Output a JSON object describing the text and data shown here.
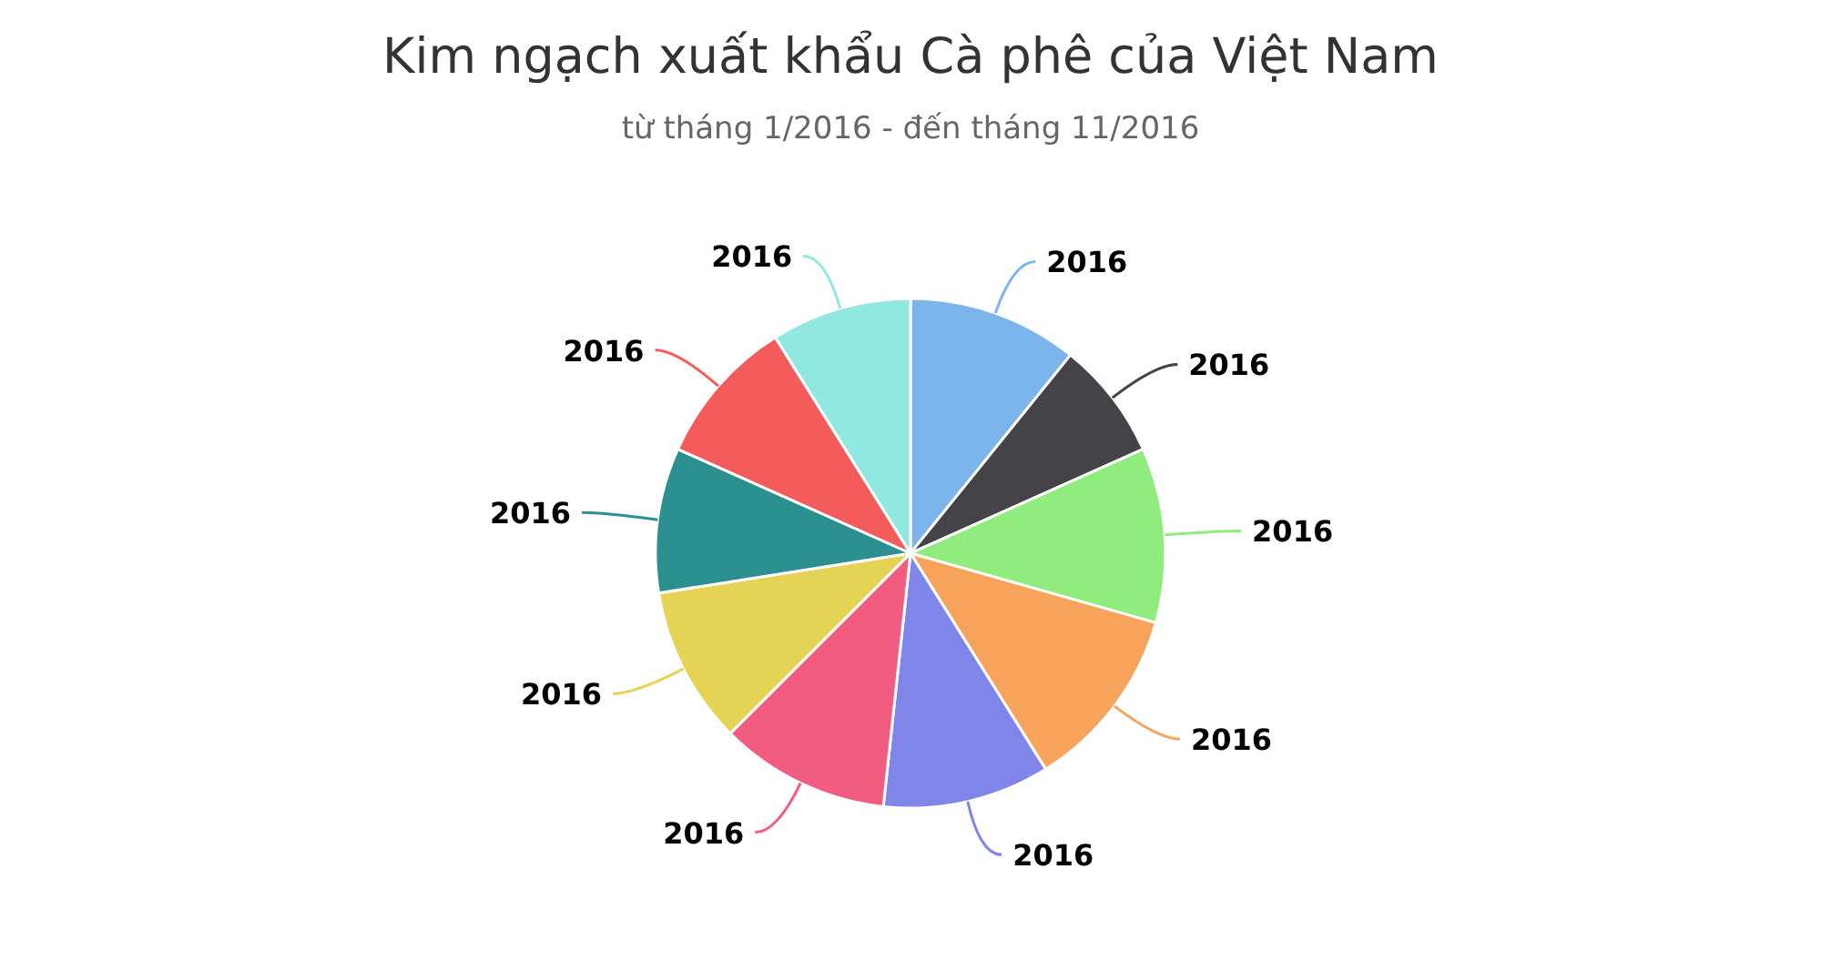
{
  "chart_data": {
    "type": "pie",
    "title": "Kim ngạch xuất khẩu Cà phê của Việt Nam",
    "subtitle": "từ tháng 1/2016 - đến tháng 11/2016",
    "categories": [
      "2016",
      "2016",
      "2016",
      "2016",
      "2016",
      "2016",
      "2016",
      "2016",
      "2016",
      "2016"
    ],
    "values": [
      10.8,
      7.5,
      11.1,
      11.7,
      10.6,
      10.8,
      10,
      9.2,
      9.4,
      8.9
    ],
    "colors": [
      "#7cb5ec",
      "#434348",
      "#90ed7d",
      "#f7a35c",
      "#8085e9",
      "#f15c80",
      "#e4d354",
      "#2b908f",
      "#f45b5b",
      "#91e8e1"
    ]
  }
}
